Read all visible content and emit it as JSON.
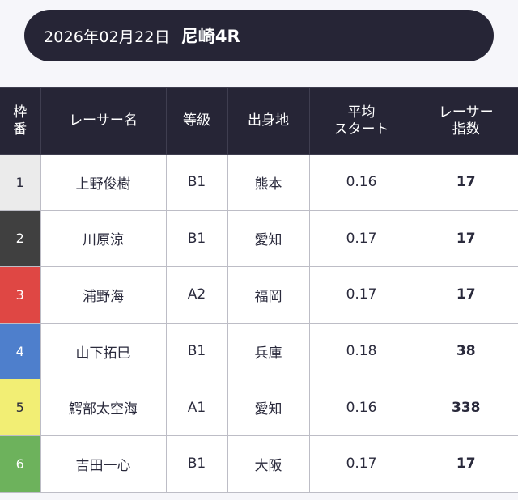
{
  "header": {
    "date": "2026年02月22日",
    "race": "尼崎4R"
  },
  "columns": {
    "waku": "枠\n番",
    "name": "レーサー名",
    "grade": "等級",
    "hometown": "出身地",
    "avg_start": "平均\nスタート",
    "index": "レーサー\n指数"
  },
  "colors": {
    "header_bg": "#262536",
    "waku_1": "#ebebeb",
    "waku_2": "#404040",
    "waku_3": "#df4744",
    "waku_4": "#4e7fcc",
    "waku_5": "#f2ee74",
    "waku_6": "#6db25c"
  },
  "rows": [
    {
      "waku": "1",
      "name": "上野俊樹",
      "grade": "B1",
      "hometown": "熊本",
      "avg_start": "0.16",
      "index": "17"
    },
    {
      "waku": "2",
      "name": "川原涼",
      "grade": "B1",
      "hometown": "愛知",
      "avg_start": "0.17",
      "index": "17"
    },
    {
      "waku": "3",
      "name": "浦野海",
      "grade": "A2",
      "hometown": "福岡",
      "avg_start": "0.17",
      "index": "17"
    },
    {
      "waku": "4",
      "name": "山下拓巳",
      "grade": "B1",
      "hometown": "兵庫",
      "avg_start": "0.18",
      "index": "38"
    },
    {
      "waku": "5",
      "name": "鰐部太空海",
      "grade": "A1",
      "hometown": "愛知",
      "avg_start": "0.16",
      "index": "338"
    },
    {
      "waku": "6",
      "name": "吉田一心",
      "grade": "B1",
      "hometown": "大阪",
      "avg_start": "0.17",
      "index": "17"
    }
  ]
}
